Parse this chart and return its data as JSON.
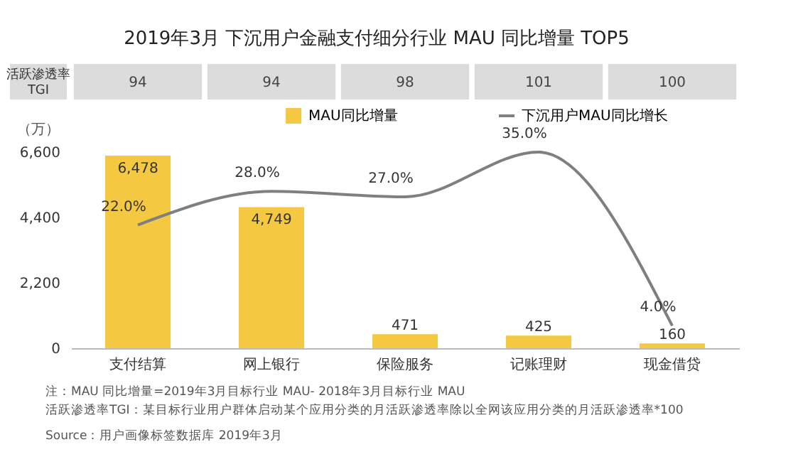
{
  "chart_data": {
    "type": "bar",
    "title": "2019年3月 下沉用户金融支付细分行业 MAU 同比增量 TOP5",
    "ylabel": "（万）",
    "categories": [
      "支付结算",
      "网上银行",
      "保险服务",
      "记账理财",
      "现金借贷"
    ],
    "series": [
      {
        "name": "MAU同比增量",
        "color": "#f5c842",
        "values": [
          6478,
          4749,
          471,
          425,
          160
        ],
        "value_labels": [
          "6,478",
          "4,749",
          "471",
          "425",
          "160"
        ]
      },
      {
        "name": "下沉用户MAU同比增长",
        "type": "line",
        "axis": "y2",
        "color": "#7f7f7f",
        "values": [
          22.0,
          28.0,
          27.0,
          35.0,
          4.0
        ],
        "value_labels": [
          "22.0%",
          "28.0%",
          "27.0%",
          "35.0%",
          "4.0%"
        ]
      }
    ],
    "data_labels": true,
    "ylim": [
      0,
      6600
    ],
    "yticks": [
      0,
      {
        "value": 2200,
        "label": "2,200"
      },
      {
        "value": 4400,
        "label": "4,400"
      },
      {
        "value": 6600,
        "label": "6,600"
      }
    ],
    "grid": false,
    "legend": "top",
    "annotations": [
      "活跃渗透率TGI",
      "94",
      "94",
      "98",
      "101",
      "100",
      "注：MAU 同比增量=2019年3月目标行业 MAU- 2018年3月目标行业 MAU",
      "活跃渗透率TGI：某目标行业用户群体启动某个应用分类的月活跃渗透率除以全网该应用分类的月活跃渗透率*100",
      "Source：用户画像标签数据库 2019年3月"
    ]
  }
}
